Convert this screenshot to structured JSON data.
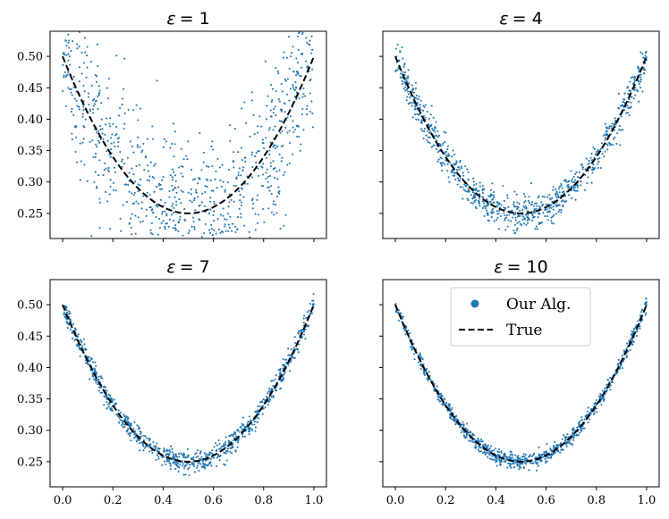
{
  "chart_data": {
    "type": "scatter",
    "layout": "2x2 grid, shared x and y axes",
    "xlim": [
      -0.05,
      1.05
    ],
    "ylim": [
      0.21,
      0.54
    ],
    "x_ticks": [
      0.0,
      0.2,
      0.4,
      0.6,
      0.8,
      1.0
    ],
    "x_tick_labels": [
      "0.0",
      "0.2",
      "0.4",
      "0.6",
      "0.8",
      "1.0"
    ],
    "y_ticks": [
      0.25,
      0.3,
      0.35,
      0.4,
      0.45,
      0.5
    ],
    "y_tick_labels": [
      "0.25",
      "0.30",
      "0.35",
      "0.40",
      "0.45",
      "0.50"
    ],
    "true_function": "y = (x - 0.5)^2 + 0.25",
    "true_curve": {
      "x": [
        0.0,
        0.05,
        0.1,
        0.15,
        0.2,
        0.25,
        0.3,
        0.35,
        0.4,
        0.45,
        0.5,
        0.55,
        0.6,
        0.65,
        0.7,
        0.75,
        0.8,
        0.85,
        0.9,
        0.95,
        1.0
      ],
      "y": [
        0.5,
        0.4525,
        0.41,
        0.3725,
        0.34,
        0.3125,
        0.29,
        0.2725,
        0.26,
        0.2525,
        0.25,
        0.2525,
        0.26,
        0.2725,
        0.29,
        0.3125,
        0.34,
        0.3725,
        0.41,
        0.4525,
        0.5
      ]
    },
    "panels": [
      {
        "title_symbol": "ε",
        "title_value": "= 1",
        "approx_noise_sd": 0.065,
        "n_points": 900
      },
      {
        "title_symbol": "ε",
        "title_value": "= 4",
        "approx_noise_sd": 0.014,
        "n_points": 900
      },
      {
        "title_symbol": "ε",
        "title_value": "= 7",
        "approx_noise_sd": 0.008,
        "n_points": 900
      },
      {
        "title_symbol": "ε",
        "title_value": "= 10",
        "approx_noise_sd": 0.0055,
        "n_points": 900
      }
    ],
    "legend": {
      "location": "top-center of bottom-right panel",
      "entries": [
        {
          "label": "Our Alg.",
          "style": "dot"
        },
        {
          "label": "True",
          "style": "dashed-line"
        }
      ]
    },
    "colors": {
      "points": "#1f77b4",
      "true_line": "#000000",
      "axes": "#000000"
    }
  }
}
